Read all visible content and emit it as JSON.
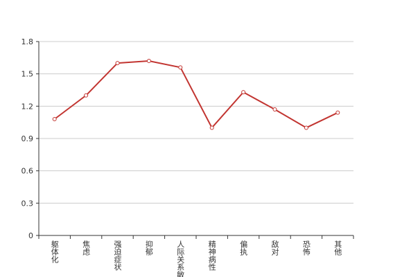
{
  "chart_data": {
    "type": "line",
    "categories": [
      "躯体化",
      "焦虑",
      "强迫症状",
      "抑郁",
      "人际关系敏感",
      "精神病性",
      "偏执",
      "敌对",
      "恐怖",
      "其他"
    ],
    "values": [
      1.08,
      1.3,
      1.6,
      1.62,
      1.56,
      1.0,
      1.33,
      1.17,
      1.0,
      1.14
    ],
    "color": "#c23531",
    "ylim": [
      0,
      1.8
    ],
    "yticks": [
      0,
      0.3,
      0.6,
      0.9,
      1.2,
      1.5,
      1.8
    ],
    "grid": true
  }
}
